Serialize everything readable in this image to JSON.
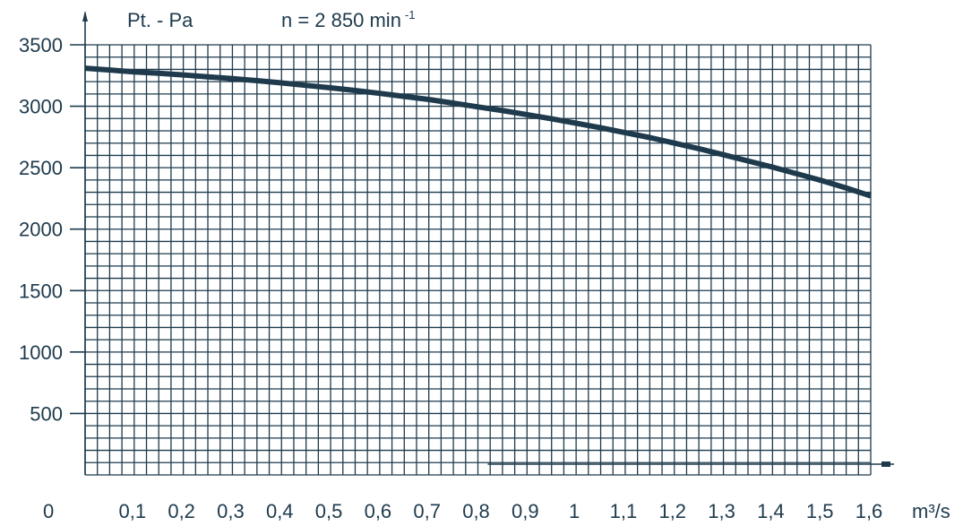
{
  "chart_data": {
    "type": "line",
    "ylabel": "Pt. - Pa",
    "speed_label": "n = 2 850 min",
    "speed_exponent": "-1",
    "xlabel": "m³/s",
    "origin_label": "0",
    "xlim": [
      0,
      1.6
    ],
    "ylim": [
      0,
      3500
    ],
    "x_ticks": [
      0.1,
      0.2,
      0.3,
      0.4,
      0.5,
      0.6,
      0.7,
      0.8,
      0.9,
      1.0,
      1.1,
      1.2,
      1.3,
      1.4,
      1.5,
      1.6
    ],
    "x_tick_labels": [
      "0,1",
      "0,2",
      "0,3",
      "0,4",
      "0,5",
      "0,6",
      "0,7",
      "0,8",
      "0,9",
      "1",
      "1,1",
      "1,2",
      "1,3",
      "1,4",
      "1,5",
      "1,6"
    ],
    "y_ticks": [
      500,
      1000,
      1500,
      2000,
      2500,
      3000,
      3500
    ],
    "y_tick_labels": [
      "500",
      "1000",
      "1500",
      "2000",
      "2500",
      "3000",
      "3500"
    ],
    "grid": true,
    "grid_minor_x_step": 0.025,
    "grid_minor_y_step": 100,
    "colors": {
      "line": "#1e3a4c",
      "grid": "#1e3a4c",
      "text": "#1e3a4c"
    },
    "series": [
      {
        "x": [
          0,
          0.05,
          0.1,
          0.15,
          0.2,
          0.25,
          0.3,
          0.35,
          0.4,
          0.45,
          0.5,
          0.55,
          0.6,
          0.65,
          0.7,
          0.75,
          0.8,
          0.85,
          0.9,
          0.95,
          1.0,
          1.05,
          1.1,
          1.15,
          1.2,
          1.25,
          1.3,
          1.35,
          1.4,
          1.45,
          1.5,
          1.55,
          1.6
        ],
        "y": [
          3310,
          3295,
          3280,
          3268,
          3255,
          3240,
          3225,
          3208,
          3190,
          3170,
          3150,
          3128,
          3105,
          3080,
          3055,
          3025,
          2995,
          2965,
          2932,
          2898,
          2862,
          2825,
          2785,
          2745,
          2700,
          2655,
          2605,
          2555,
          2505,
          2450,
          2395,
          2335,
          2270
        ]
      }
    ]
  }
}
